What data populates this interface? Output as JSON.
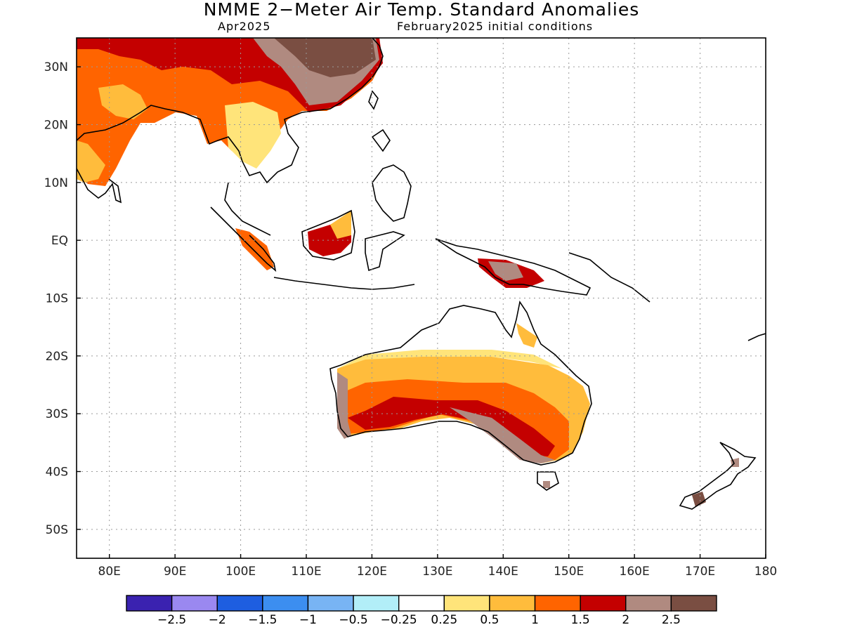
{
  "title": "NMME 2−Meter Air Temp. Standard Anomalies",
  "subtitle_left": "Apr2025",
  "subtitle_right": "February2025 initial conditions",
  "map": {
    "lon_range": [
      75,
      180
    ],
    "lat_range": [
      -55,
      35
    ],
    "lat_labels": [
      "30N",
      "20N",
      "10N",
      "EQ",
      "10S",
      "20S",
      "30S",
      "40S",
      "50S"
    ],
    "lon_labels": [
      "80E",
      "90E",
      "100E",
      "110E",
      "120E",
      "130E",
      "140E",
      "150E",
      "160E",
      "170E",
      "180"
    ],
    "grid": "dotted"
  },
  "colorbar": {
    "colors": [
      "#3a22b0",
      "#9a88f0",
      "#1e5ee0",
      "#3c8ef0",
      "#78b4f4",
      "#b2eef8",
      "#ffffff",
      "#ffe47a",
      "#ffbc3c",
      "#ff6400",
      "#c40000",
      "#b08a80",
      "#7a4e42"
    ],
    "labels": [
      "−2.5",
      "−2",
      "−1.5",
      "−1",
      "−0.5",
      "−0.25",
      "0.25",
      "0.5",
      "1",
      "1.5",
      "2",
      "2.5"
    ]
  }
}
